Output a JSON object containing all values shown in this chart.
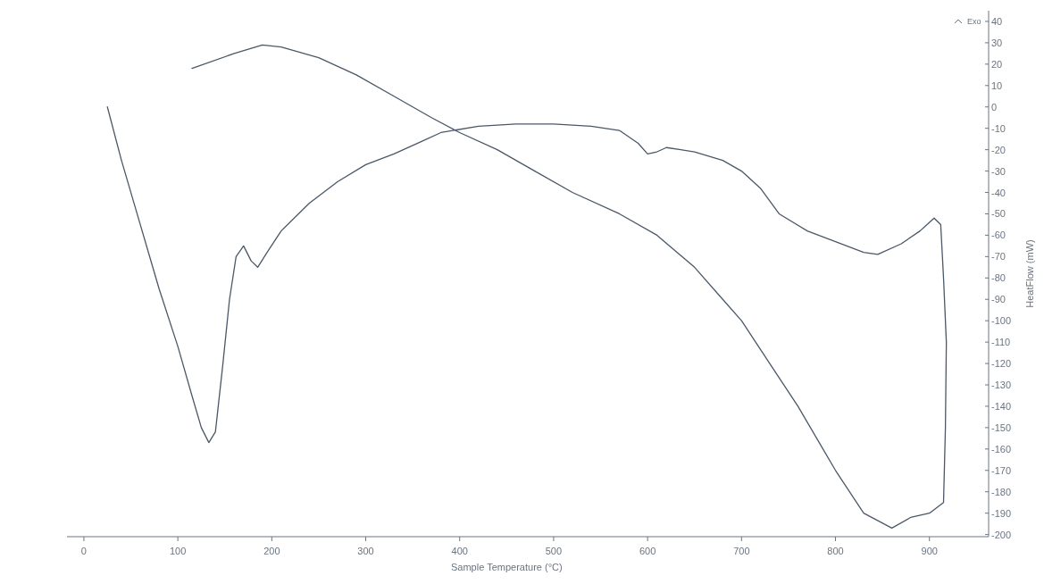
{
  "chart_data": {
    "type": "line",
    "xlabel": "Sample Temperature (°C)",
    "ylabel": "HeatFlow (mW)",
    "annotations": [
      "Exo"
    ],
    "xlim": [
      -18,
      963
    ],
    "xticks": [
      0,
      100,
      200,
      300,
      400,
      500,
      600,
      700,
      800,
      900
    ],
    "ylim": [
      -201,
      45
    ],
    "yticks": [
      40,
      30,
      20,
      10,
      0,
      -10,
      -20,
      -30,
      -40,
      -50,
      -60,
      -70,
      -80,
      -90,
      -100,
      -110,
      -120,
      -130,
      -140,
      -150,
      -160,
      -170,
      -180,
      -190,
      -200
    ],
    "grid": false,
    "marker": "none",
    "line_style": "solid",
    "series": [
      {
        "color": "#4a5868",
        "x": [
          25,
          40,
          60,
          80,
          100,
          115,
          125,
          133,
          140,
          148,
          155,
          162,
          170,
          178,
          185,
          195,
          210,
          240,
          270,
          300,
          330,
          360,
          380,
          420,
          460,
          500,
          540,
          570,
          590,
          600,
          610,
          620,
          650,
          680,
          700,
          720,
          740,
          770,
          800,
          830,
          845,
          870,
          890,
          905,
          912,
          915,
          918,
          917,
          915,
          900,
          880,
          860,
          830,
          800,
          760,
          730,
          700,
          680,
          650,
          610,
          570,
          520,
          480,
          440,
          400,
          370,
          330,
          290,
          250,
          210,
          190,
          160,
          115
        ],
        "values": [
          0,
          -25,
          -55,
          -85,
          -112,
          -135,
          -150,
          -157,
          -152,
          -120,
          -90,
          -70,
          -65,
          -72,
          -75,
          -68,
          -58,
          -45,
          -35,
          -27,
          -22,
          -16,
          -12,
          -9,
          -8,
          -8,
          -9,
          -11,
          -17,
          -22,
          -21,
          -19,
          -21,
          -25,
          -30,
          -38,
          -50,
          -58,
          -63,
          -68,
          -69,
          -64,
          -58,
          -52,
          -55,
          -80,
          -110,
          -150,
          -185,
          -190,
          -192,
          -197,
          -190,
          -170,
          -140,
          -120,
          -100,
          -90,
          -75,
          -60,
          -50,
          -40,
          -30,
          -20,
          -12,
          -5,
          5,
          15,
          23,
          28,
          29,
          25,
          18
        ]
      }
    ]
  }
}
